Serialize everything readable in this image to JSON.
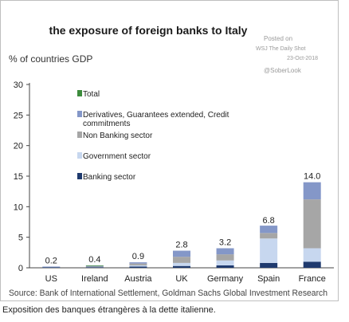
{
  "chart_data": {
    "type": "bar",
    "stacked": true,
    "title": "the exposure of foreign banks to Italy",
    "ylabel": "% of countries GDP",
    "source": "Source: Bank of International Settlement, Goldman Sachs Global Investment Research",
    "watermark": [
      "Posted on",
      "WSJ The Daily Shot",
      "23-Oct-2018",
      "@SoberLook"
    ],
    "categories": [
      "US",
      "Ireland",
      "Austria",
      "UK",
      "Germany",
      "Spain",
      "France"
    ],
    "totals": [
      "0.2",
      "0.4",
      "0.9",
      "2.8",
      "3.2",
      "6.8",
      "14.0"
    ],
    "ylim": [
      0,
      30
    ],
    "yticks": [
      0,
      5,
      10,
      15,
      20,
      25,
      30
    ],
    "grid": false,
    "legend_position": "top-left",
    "series": [
      {
        "name": "Banking sector",
        "color": "#1f3a6e",
        "values": [
          0.1,
          0.1,
          0.2,
          0.3,
          0.4,
          0.8,
          1.0
        ]
      },
      {
        "name": "Government sector",
        "color": "#c7d7ef",
        "values": [
          0.0,
          0.0,
          0.2,
          0.5,
          0.8,
          4.0,
          2.2
        ]
      },
      {
        "name": "Non Banking sector",
        "color": "#a6a6a6",
        "values": [
          0.0,
          0.1,
          0.3,
          1.0,
          1.0,
          0.9,
          8.0
        ]
      },
      {
        "name": "Derivatives, Guarantees extended, Credit commitments",
        "color": "#8497c8",
        "values": [
          0.1,
          0.1,
          0.2,
          1.0,
          1.0,
          1.2,
          2.8
        ]
      },
      {
        "name": "Total",
        "color": "#3c8b3c",
        "values": [
          0.2,
          0.4,
          0.9,
          2.8,
          3.2,
          6.8,
          14.0
        ]
      }
    ],
    "legend_order": [
      "Total",
      "Derivatives, Guarantees extended, Credit commitments",
      "Non Banking sector",
      "Government sector",
      "Banking sector"
    ]
  },
  "caption": "Exposition des banques étrangères à la dette italienne."
}
